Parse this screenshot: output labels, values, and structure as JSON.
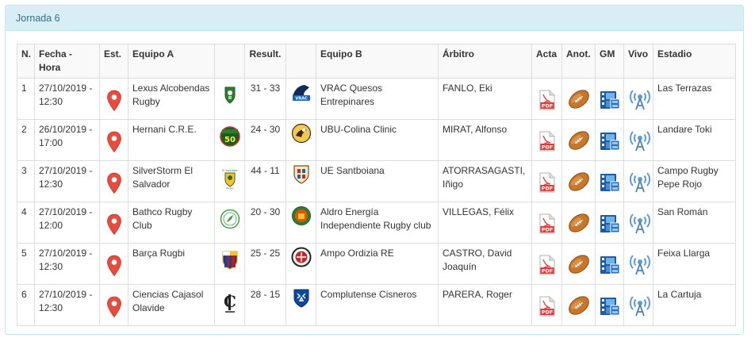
{
  "panel": {
    "title": "Jornada 6"
  },
  "columns": {
    "num": "N.",
    "date": "Fecha - Hora",
    "stadium_icon": "Est.",
    "team_a": "Equipo A",
    "result": "Result.",
    "team_b": "Equipo B",
    "referee": "Árbitro",
    "acta": "Acta",
    "anot": "Anot.",
    "gm": "GM",
    "vivo": "Vivo",
    "stadium": "Estadio"
  },
  "icons": {
    "location": "map-marker-icon",
    "acta": "pdf-file-icon",
    "anot": "rugby-ball-icon",
    "gm": "film-strip-icon",
    "vivo": "broadcast-tower-icon"
  },
  "colors": {
    "heading_bg": "#d9edf7",
    "heading_text": "#31708f",
    "marker": "#e74c3c",
    "pdf": "#e53935"
  },
  "matches": [
    {
      "num": "1",
      "date": "27/10/2019 - 12:30",
      "team_a": "Lexus Alcobendas Rugby",
      "result": "31 - 33",
      "team_b": "VRAC Quesos Entrepinares",
      "referee": "FANLO, Eki",
      "stadium": "Las Terrazas"
    },
    {
      "num": "2",
      "date": "26/10/2019 - 17:00",
      "team_a": "Hernani C.R.E.",
      "result": "24 - 30",
      "team_b": "UBU-Colina Clinic",
      "referee": "MIRAT, Alfonso",
      "stadium": "Landare Toki"
    },
    {
      "num": "3",
      "date": "27/10/2019 - 12:30",
      "team_a": "SilverStorm El Salvador",
      "result": "44 - 11",
      "team_b": "UE Santboiana",
      "referee": "ATORRASAGASTI, Iñigo",
      "stadium": "Campo Rugby Pepe Rojo"
    },
    {
      "num": "4",
      "date": "27/10/2019 - 12:00",
      "team_a": "Bathco Rugby Club",
      "result": "20 - 30",
      "team_b": "Aldro Energía Independiente Rugby club",
      "referee": "VILLEGAS, Félix",
      "stadium": "San Román"
    },
    {
      "num": "5",
      "date": "27/10/2019 - 12:30",
      "team_a": "Barça Rugbi",
      "result": "25 - 25",
      "team_b": "Ampo Ordizia RE",
      "referee": "CASTRO, David Joaquín",
      "stadium": "Feixa Llarga"
    },
    {
      "num": "6",
      "date": "27/10/2019 - 12:30",
      "team_a": "Ciencias Cajasol Olavide",
      "result": "28 - 15",
      "team_b": "Complutense Cisneros",
      "referee": "PARERA, Roger",
      "stadium": "La Cartuja"
    }
  ]
}
